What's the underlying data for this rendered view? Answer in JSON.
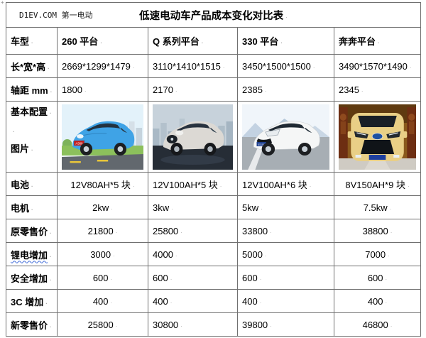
{
  "page": {
    "watermark": "D1EV.COM 第一电动",
    "title": "低速电动车产品成本变化对比表"
  },
  "marks": {
    "cell_end": "·",
    "table_handle": "+"
  },
  "colors": {
    "border": "#707070",
    "spellcheck_squiggle": "#3f6bd8",
    "car_260_body": "#3fa3e6",
    "car_q_body": "#dcd9d4",
    "car_330_body": "#f5f6f6",
    "car_benben_body": "#e9cf86",
    "plate_260": "#c21d1d",
    "plate_330": "#1d3f8f",
    "plate_benben": "#1e3f9e"
  },
  "table": {
    "header": [
      "车型",
      "260 平台",
      "Q 系列平台",
      "330 平台",
      "奔奔平台"
    ],
    "rows_top": [
      {
        "label": "长*宽*高",
        "values": [
          "2669*1299*1479",
          "3110*1410*1515",
          "3450*1500*1500",
          "3490*1570*1490"
        ]
      },
      {
        "label": "轴距 mm",
        "values": [
          "1800",
          "2170",
          "2385",
          "2345"
        ]
      }
    ],
    "images_row": {
      "label_line1": "基本配置",
      "label_line2": "图片",
      "cars": [
        {
          "name": "260 平台车型图片",
          "plate": "A360"
        },
        {
          "name": "Q 系列平台车型图片",
          "plate": ""
        },
        {
          "name": "330 平台车型图片",
          "plate": "E330"
        },
        {
          "name": "奔奔平台车型图片",
          "plate": ""
        }
      ]
    },
    "rows_bottom": [
      {
        "label": "电池",
        "values": [
          "12V80AH*5 块",
          "12V100AH*5 块",
          "12V100AH*6 块",
          "8V150AH*9 块"
        ]
      },
      {
        "label": "电机",
        "values": [
          "2kw",
          "3kw",
          "5kw",
          "7.5kw"
        ]
      },
      {
        "label": "原零售价",
        "values": [
          "21800",
          "25800",
          "33800",
          "38800"
        ]
      },
      {
        "label": "锂电增加",
        "squiggle": true,
        "values": [
          "3000",
          "4000",
          "5000",
          "7000"
        ]
      },
      {
        "label": "安全增加",
        "values": [
          "600",
          "600",
          "600",
          "600"
        ]
      },
      {
        "label": "3C 增加",
        "values": [
          "400",
          "400",
          "400",
          "400"
        ]
      },
      {
        "label": "新零售价",
        "values": [
          "25800",
          "30800",
          "39800",
          "46800"
        ]
      }
    ]
  }
}
